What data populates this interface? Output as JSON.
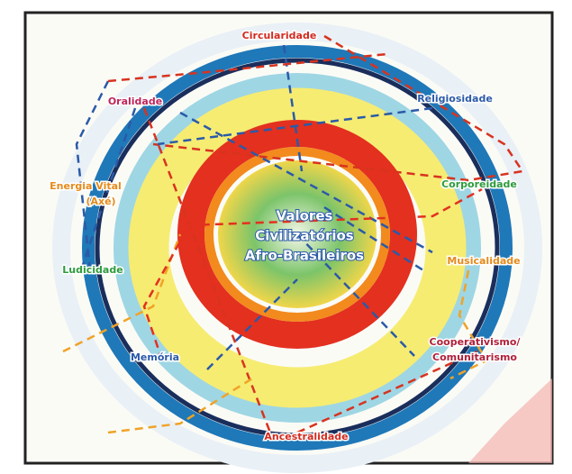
{
  "center": {
    "lines": [
      "Valores",
      "Civilizatórios",
      "Afro-Brasileiros"
    ]
  },
  "nodes": [
    {
      "lines": [
        "Circularidade"
      ]
    },
    {
      "lines": [
        "Religiosidade"
      ]
    },
    {
      "lines": [
        "Oralidade"
      ]
    },
    {
      "lines": [
        "Energia Vital",
        "(Axé)"
      ]
    },
    {
      "lines": [
        "Corporeidade"
      ]
    },
    {
      "lines": [
        "Musicalidade"
      ]
    },
    {
      "lines": [
        "Ludicidade"
      ]
    },
    {
      "lines": [
        "Cooperativismo/",
        "Comunitarismo"
      ]
    },
    {
      "lines": [
        "Memória"
      ]
    },
    {
      "lines": [
        "Ancestralidade"
      ]
    }
  ]
}
